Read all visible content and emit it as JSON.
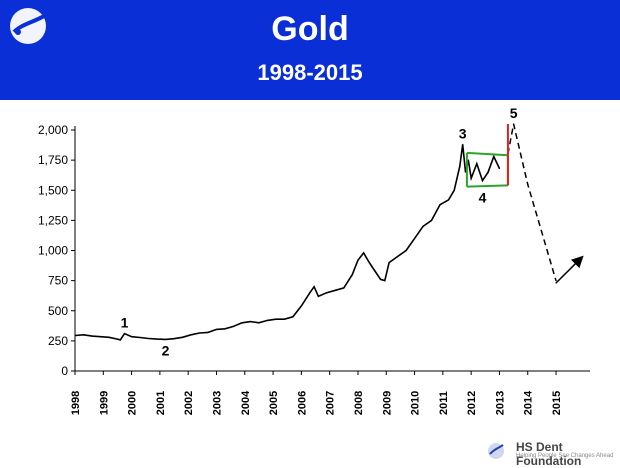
{
  "header": {
    "title": "Gold",
    "subtitle": "1998-2015",
    "background": "#0b2fd6"
  },
  "footer": {
    "brand": "HS Dent Foundation",
    "tagline": "Helping People See Changes Ahead"
  },
  "chart_data": {
    "type": "line",
    "title": "Gold",
    "subtitle": "1998-2015",
    "xlabel": "",
    "ylabel": "",
    "xlim": [
      1998,
      2016.2
    ],
    "ylim": [
      0,
      2000
    ],
    "y_ticks": [
      0,
      250,
      500,
      750,
      1000,
      1250,
      1500,
      1750,
      2000
    ],
    "y_tick_labels": [
      "0",
      "250",
      "500",
      "750",
      "1,000",
      "1,250",
      "1,500",
      "1,750",
      "2,000"
    ],
    "x_ticks": [
      1998,
      1999,
      2000,
      2001,
      2002,
      2003,
      2004,
      2005,
      2006,
      2007,
      2008,
      2009,
      2010,
      2011,
      2012,
      2013,
      2014,
      2015
    ],
    "x_tick_labels": [
      "1998",
      "1999",
      "2000",
      "2001",
      "2002",
      "2003",
      "2004",
      "2005",
      "2006",
      "2007",
      "2008",
      "2009",
      "2010",
      "2011",
      "2012",
      "2013",
      "2014",
      "2015"
    ],
    "grid": false,
    "legend": "none",
    "series": [
      {
        "style": "solid",
        "color": "#000000",
        "x": [
          1998.0,
          1998.3,
          1998.6,
          1998.9,
          1999.2,
          1999.5,
          1999.6,
          1999.75,
          1999.85,
          2000.0,
          2000.3,
          2000.6,
          2000.9,
          2001.2,
          2001.5,
          2001.8,
          2002.1,
          2002.4,
          2002.7,
          2003.0,
          2003.3,
          2003.6,
          2003.9,
          2004.2,
          2004.5,
          2004.8,
          2005.1,
          2005.4,
          2005.7,
          2006.0,
          2006.3,
          2006.45,
          2006.6,
          2006.9,
          2007.2,
          2007.5,
          2007.8,
          2008.0,
          2008.2,
          2008.4,
          2008.6,
          2008.8,
          2008.95,
          2009.1,
          2009.4,
          2009.7,
          2010.0,
          2010.3,
          2010.6,
          2010.9,
          2011.2,
          2011.4,
          2011.6,
          2011.7,
          2011.8,
          2011.9,
          2012.0,
          2012.2,
          2012.4,
          2012.6,
          2012.8,
          2013.0
        ],
        "y": [
          295,
          300,
          290,
          285,
          280,
          265,
          258,
          310,
          300,
          285,
          278,
          270,
          265,
          262,
          268,
          280,
          300,
          315,
          320,
          345,
          350,
          370,
          400,
          410,
          400,
          420,
          430,
          430,
          450,
          540,
          650,
          700,
          620,
          650,
          670,
          690,
          800,
          920,
          980,
          900,
          830,
          760,
          750,
          900,
          950,
          1000,
          1100,
          1200,
          1250,
          1380,
          1420,
          1500,
          1700,
          1880,
          1650,
          1750,
          1600,
          1720,
          1580,
          1650,
          1780,
          1680
        ]
      },
      {
        "style": "dashed",
        "color": "#000000",
        "x": [
          2013.3,
          2013.5,
          2014.0,
          2015.0
        ],
        "y": [
          1800,
          2050,
          1550,
          750
        ]
      },
      {
        "style": "solid-arrow",
        "color": "#000000",
        "x": [
          2015.0,
          2015.9
        ],
        "y": [
          730,
          940
        ]
      }
    ],
    "overlays": [
      {
        "kind": "green-line",
        "color": "#2aa52a",
        "x": [
          2011.85,
          2013.3
        ],
        "y": [
          1810,
          1790
        ]
      },
      {
        "kind": "green-line",
        "color": "#2aa52a",
        "x": [
          2011.85,
          2013.3
        ],
        "y": [
          1530,
          1540
        ]
      },
      {
        "kind": "green-line",
        "color": "#2aa52a",
        "x": [
          2011.85,
          2011.85
        ],
        "y": [
          1810,
          1530
        ]
      },
      {
        "kind": "green-line",
        "color": "#2aa52a",
        "x": [
          2013.3,
          2013.3
        ],
        "y": [
          1790,
          1540
        ]
      },
      {
        "kind": "red-line",
        "color": "#e02020",
        "x": [
          2013.3,
          2013.3
        ],
        "y": [
          1540,
          2050
        ]
      }
    ],
    "annotations": [
      {
        "text": "1",
        "x": 1999.75,
        "y": 310
      },
      {
        "text": "2",
        "x": 2001.2,
        "y": 262
      },
      {
        "text": "3",
        "x": 2011.7,
        "y": 1880
      },
      {
        "text": "4",
        "x": 2012.4,
        "y": 1530
      },
      {
        "text": "5",
        "x": 2013.5,
        "y": 2050
      }
    ]
  }
}
